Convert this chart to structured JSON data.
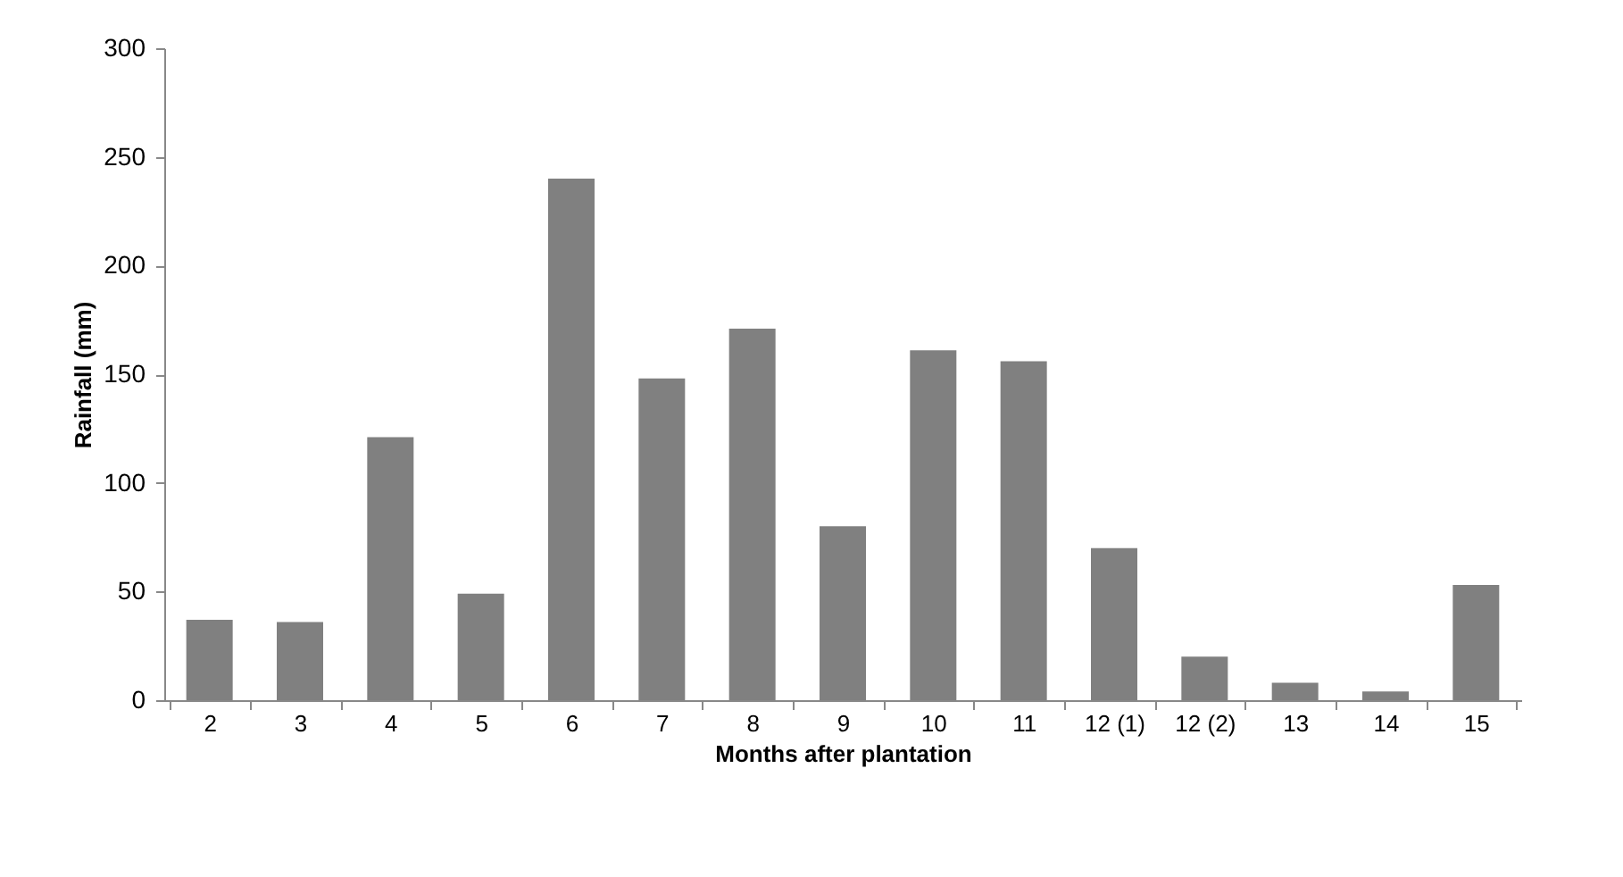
{
  "chart_data": {
    "type": "bar",
    "xlabel": "Months after plantation",
    "ylabel": "Rainfall (mm)",
    "categories": [
      "2",
      "3",
      "4",
      "5",
      "6",
      "7",
      "8",
      "9",
      "10",
      "11",
      "12 (1)",
      "12 (2)",
      "13",
      "14",
      "15"
    ],
    "values": [
      37,
      36,
      121,
      49,
      240,
      148,
      171,
      80,
      161,
      156,
      70,
      20,
      8,
      4,
      53
    ],
    "color": "#808080",
    "ylim": [
      0,
      300
    ],
    "yticks": [
      0,
      50,
      100,
      150,
      200,
      250,
      300
    ]
  }
}
